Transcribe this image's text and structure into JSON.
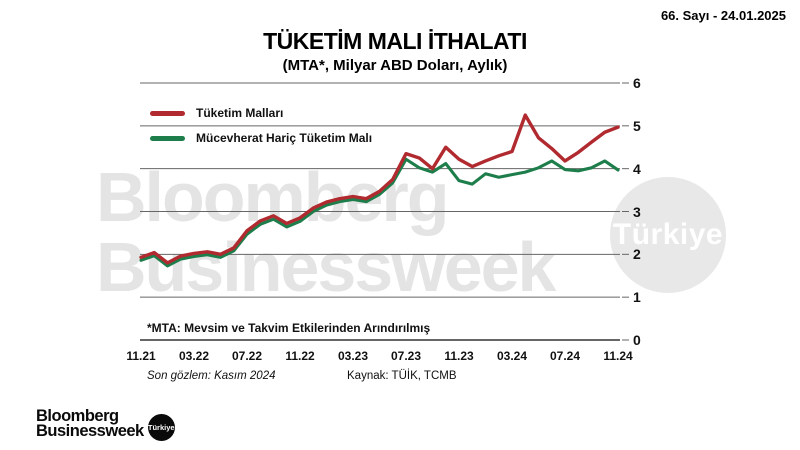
{
  "header": {
    "title": "TÜKETİM MALI İTHALATI",
    "subtitle": "(MTA*, Milyar ABD Doları, Aylık)",
    "issue": "66. Sayı - 24.01.2025"
  },
  "legend": [
    {
      "label": "Tüketim Malları",
      "color": "#b02a2f"
    },
    {
      "label": "Mücevherat Hariç Tüketim Malı",
      "color": "#1e7e4b"
    }
  ],
  "footnote": "*MTA: Mevsim ve Takvim Etkilerinden Arındırılmış",
  "footer": {
    "observation": "Son gözlem: Kasım 2024",
    "source": "Kaynak: TÜİK, TCMB"
  },
  "watermark": {
    "line1": "Bloomberg",
    "line2": "Businessweek",
    "circle_label": "Türkiye"
  },
  "logo": {
    "line1": "Bloomberg",
    "line2": "Businessweek",
    "badge": "Türkiye"
  },
  "colors": {
    "series_red": "#b02a2f",
    "series_green": "#1e7e4b",
    "gridline": "#666666",
    "axis": "#333333",
    "watermark_gray": "#e4e4e4"
  },
  "chart_data": {
    "type": "line",
    "title": "TÜKETİM MALI İTHALATI",
    "subtitle": "(MTA*, Milyar ABD Doları, Aylık)",
    "ylabel": "Milyar ABD Doları",
    "ylim": [
      0,
      6
    ],
    "y_ticks": [
      0,
      1,
      2,
      3,
      4,
      5,
      6
    ],
    "y_axis_side": "right",
    "grid": true,
    "legend_position": "top-left",
    "x_tick_labels": [
      "11.21",
      "03.22",
      "07.22",
      "11.22",
      "03.23",
      "07.23",
      "11.23",
      "03.24",
      "07.24",
      "11.24"
    ],
    "x": [
      "11.21",
      "12.21",
      "01.22",
      "02.22",
      "03.22",
      "04.22",
      "05.22",
      "06.22",
      "07.22",
      "08.22",
      "09.22",
      "10.22",
      "11.22",
      "12.22",
      "01.23",
      "02.23",
      "03.23",
      "04.23",
      "05.23",
      "06.23",
      "07.23",
      "08.23",
      "09.23",
      "10.23",
      "11.23",
      "12.23",
      "01.24",
      "02.24",
      "03.24",
      "04.24",
      "05.24",
      "06.24",
      "07.24",
      "08.24",
      "09.24",
      "10.24",
      "11.24"
    ],
    "series": [
      {
        "name": "Tüketim Malları",
        "color": "#b02a2f",
        "values": [
          1.93,
          2.04,
          1.8,
          1.96,
          2.02,
          2.06,
          2.0,
          2.15,
          2.55,
          2.78,
          2.9,
          2.72,
          2.85,
          3.08,
          3.22,
          3.3,
          3.35,
          3.3,
          3.47,
          3.75,
          4.35,
          4.25,
          4.0,
          4.5,
          4.22,
          4.05,
          4.18,
          4.3,
          4.4,
          5.25,
          4.72,
          4.47,
          4.18,
          4.38,
          4.62,
          4.85,
          4.97
        ]
      },
      {
        "name": "Mücevherat Hariç Tüketim Malı",
        "color": "#1e7e4b",
        "values": [
          1.86,
          1.97,
          1.73,
          1.89,
          1.95,
          1.99,
          1.93,
          2.08,
          2.47,
          2.7,
          2.82,
          2.64,
          2.77,
          3.0,
          3.15,
          3.23,
          3.28,
          3.23,
          3.4,
          3.67,
          4.22,
          4.02,
          3.92,
          4.12,
          3.72,
          3.64,
          3.88,
          3.8,
          3.86,
          3.92,
          4.02,
          4.18,
          3.98,
          3.95,
          4.02,
          4.18,
          3.97
        ]
      }
    ]
  }
}
